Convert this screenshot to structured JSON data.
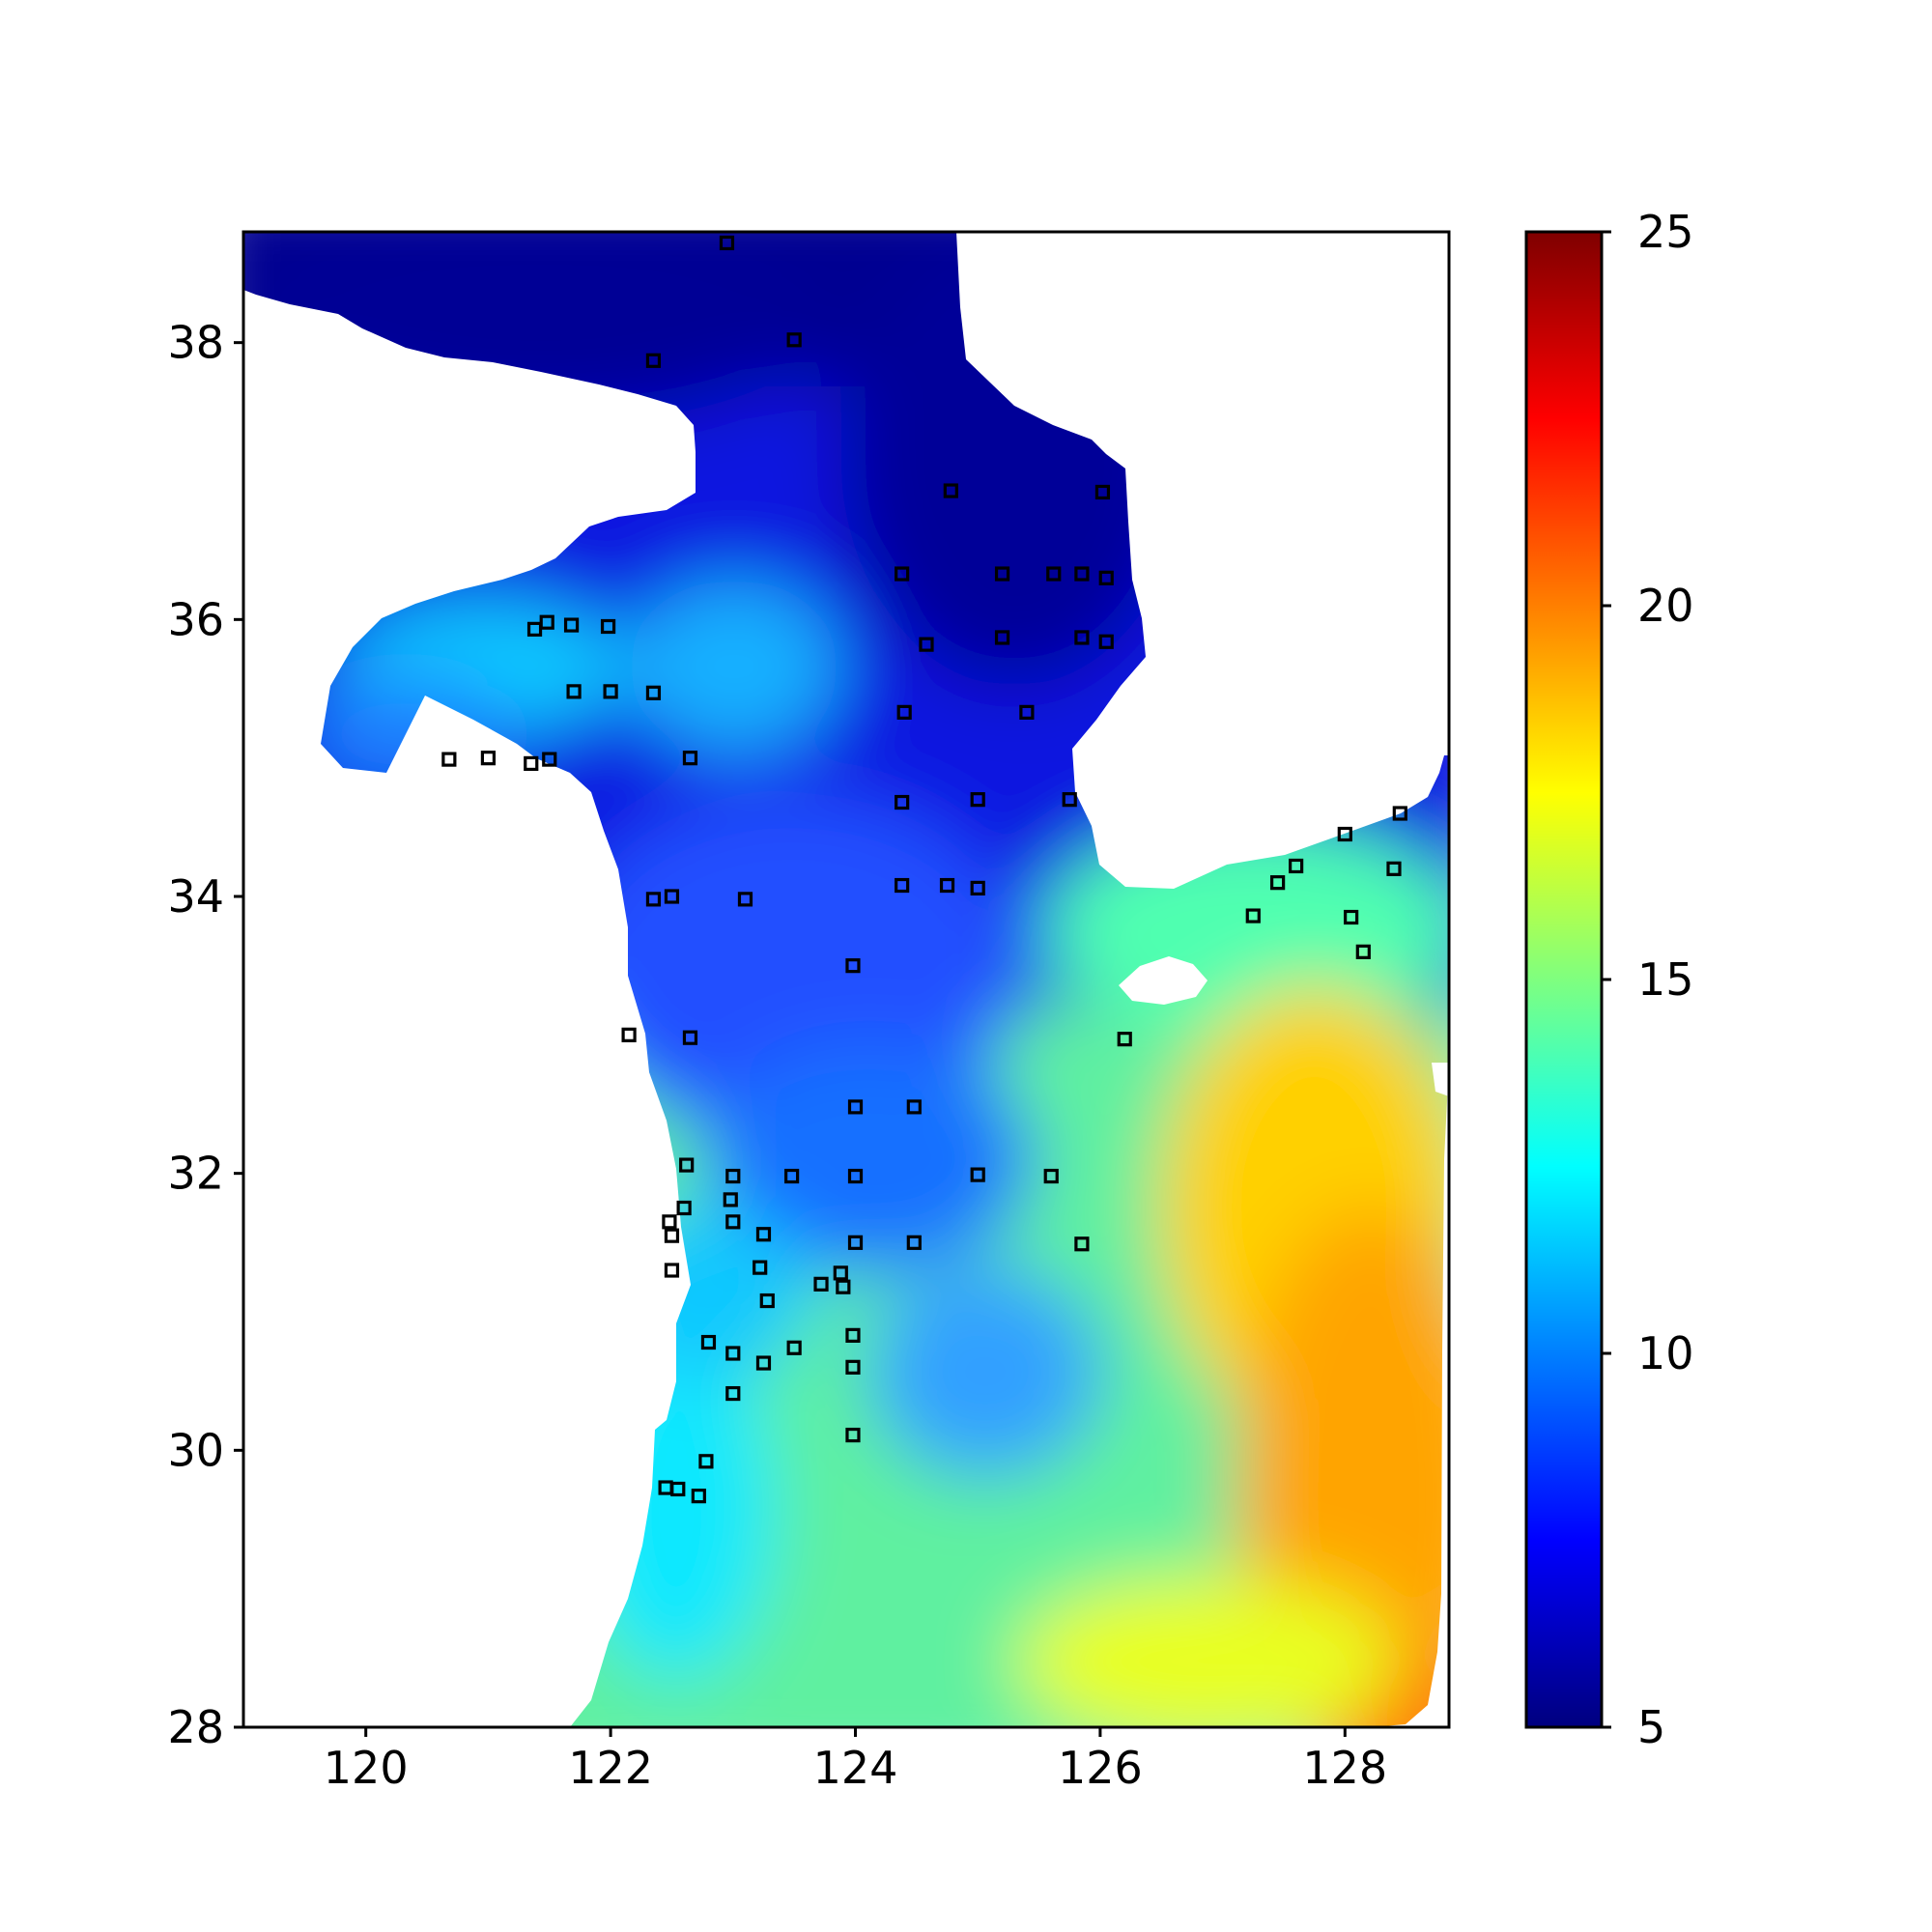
{
  "chart_data": {
    "type": "heatmap",
    "title": "",
    "xlabel": "",
    "ylabel": "",
    "xlim": [
      119.0,
      128.85
    ],
    "ylim": [
      28.0,
      38.8
    ],
    "x_ticks": [
      120,
      122,
      124,
      126,
      128
    ],
    "y_ticks": [
      28,
      30,
      32,
      34,
      36,
      38
    ],
    "x_tick_labels": [
      "120",
      "122",
      "124",
      "126",
      "128"
    ],
    "y_tick_labels": [
      "28",
      "30",
      "32",
      "34",
      "36",
      "38"
    ],
    "colorbar": {
      "colormap": "jet",
      "range": [
        5,
        25
      ],
      "ticks": [
        5,
        10,
        15,
        20,
        25
      ],
      "tick_labels": [
        "5",
        "10",
        "15",
        "20",
        "25"
      ],
      "colors": [
        "#00007f",
        "#0000ff",
        "#007fff",
        "#00ffff",
        "#7fff7f",
        "#ffff00",
        "#ff7f00",
        "#ff0000",
        "#7f0000"
      ]
    },
    "land_color": "#ffffff",
    "stations": [
      {
        "lon": 122.95,
        "lat": 38.72
      },
      {
        "lon": 123.5,
        "lat": 38.02
      },
      {
        "lon": 122.35,
        "lat": 37.87
      },
      {
        "lon": 124.78,
        "lat": 36.93
      },
      {
        "lon": 126.02,
        "lat": 36.92
      },
      {
        "lon": 124.38,
        "lat": 36.33
      },
      {
        "lon": 125.2,
        "lat": 36.33
      },
      {
        "lon": 125.62,
        "lat": 36.33
      },
      {
        "lon": 125.85,
        "lat": 36.33
      },
      {
        "lon": 126.05,
        "lat": 36.3
      },
      {
        "lon": 121.38,
        "lat": 35.93
      },
      {
        "lon": 121.48,
        "lat": 35.98
      },
      {
        "lon": 121.68,
        "lat": 35.96
      },
      {
        "lon": 121.98,
        "lat": 35.95
      },
      {
        "lon": 124.58,
        "lat": 35.82
      },
      {
        "lon": 125.2,
        "lat": 35.87
      },
      {
        "lon": 125.85,
        "lat": 35.87
      },
      {
        "lon": 126.05,
        "lat": 35.84
      },
      {
        "lon": 121.7,
        "lat": 35.48
      },
      {
        "lon": 122.0,
        "lat": 35.48
      },
      {
        "lon": 122.35,
        "lat": 35.47
      },
      {
        "lon": 124.4,
        "lat": 35.33
      },
      {
        "lon": 125.4,
        "lat": 35.33
      },
      {
        "lon": 120.68,
        "lat": 34.99
      },
      {
        "lon": 121.0,
        "lat": 35.0
      },
      {
        "lon": 121.35,
        "lat": 34.96
      },
      {
        "lon": 121.5,
        "lat": 34.99
      },
      {
        "lon": 122.65,
        "lat": 35.0
      },
      {
        "lon": 124.38,
        "lat": 34.68
      },
      {
        "lon": 125.0,
        "lat": 34.7
      },
      {
        "lon": 125.75,
        "lat": 34.7
      },
      {
        "lon": 128.45,
        "lat": 34.6
      },
      {
        "lon": 128.0,
        "lat": 34.45
      },
      {
        "lon": 127.6,
        "lat": 34.22
      },
      {
        "lon": 127.45,
        "lat": 34.1
      },
      {
        "lon": 128.4,
        "lat": 34.2
      },
      {
        "lon": 124.38,
        "lat": 34.08
      },
      {
        "lon": 124.75,
        "lat": 34.08
      },
      {
        "lon": 125.0,
        "lat": 34.06
      },
      {
        "lon": 122.35,
        "lat": 33.98
      },
      {
        "lon": 122.5,
        "lat": 34.0
      },
      {
        "lon": 123.1,
        "lat": 33.98
      },
      {
        "lon": 127.25,
        "lat": 33.86
      },
      {
        "lon": 128.05,
        "lat": 33.85
      },
      {
        "lon": 128.15,
        "lat": 33.6
      },
      {
        "lon": 123.98,
        "lat": 33.5
      },
      {
        "lon": 122.15,
        "lat": 33.0
      },
      {
        "lon": 122.65,
        "lat": 32.98
      },
      {
        "lon": 126.2,
        "lat": 32.97
      },
      {
        "lon": 124.0,
        "lat": 32.48
      },
      {
        "lon": 124.48,
        "lat": 32.48
      },
      {
        "lon": 122.62,
        "lat": 32.06
      },
      {
        "lon": 123.0,
        "lat": 31.98
      },
      {
        "lon": 123.48,
        "lat": 31.98
      },
      {
        "lon": 124.0,
        "lat": 31.98
      },
      {
        "lon": 125.0,
        "lat": 31.99
      },
      {
        "lon": 125.6,
        "lat": 31.98
      },
      {
        "lon": 122.98,
        "lat": 31.81
      },
      {
        "lon": 122.6,
        "lat": 31.75
      },
      {
        "lon": 122.48,
        "lat": 31.65
      },
      {
        "lon": 123.0,
        "lat": 31.65
      },
      {
        "lon": 122.5,
        "lat": 31.55
      },
      {
        "lon": 123.25,
        "lat": 31.56
      },
      {
        "lon": 124.0,
        "lat": 31.5
      },
      {
        "lon": 124.48,
        "lat": 31.5
      },
      {
        "lon": 125.85,
        "lat": 31.49
      },
      {
        "lon": 122.5,
        "lat": 31.3
      },
      {
        "lon": 123.22,
        "lat": 31.32
      },
      {
        "lon": 123.88,
        "lat": 31.28
      },
      {
        "lon": 123.72,
        "lat": 31.2
      },
      {
        "lon": 123.9,
        "lat": 31.18
      },
      {
        "lon": 123.28,
        "lat": 31.08
      },
      {
        "lon": 123.98,
        "lat": 30.83
      },
      {
        "lon": 122.8,
        "lat": 30.78
      },
      {
        "lon": 123.0,
        "lat": 30.7
      },
      {
        "lon": 123.5,
        "lat": 30.74
      },
      {
        "lon": 123.25,
        "lat": 30.63
      },
      {
        "lon": 123.98,
        "lat": 30.6
      },
      {
        "lon": 123.0,
        "lat": 30.41
      },
      {
        "lon": 123.98,
        "lat": 30.11
      },
      {
        "lon": 122.78,
        "lat": 29.92
      },
      {
        "lon": 122.45,
        "lat": 29.73
      },
      {
        "lon": 122.55,
        "lat": 29.72
      },
      {
        "lon": 122.72,
        "lat": 29.67
      }
    ]
  }
}
